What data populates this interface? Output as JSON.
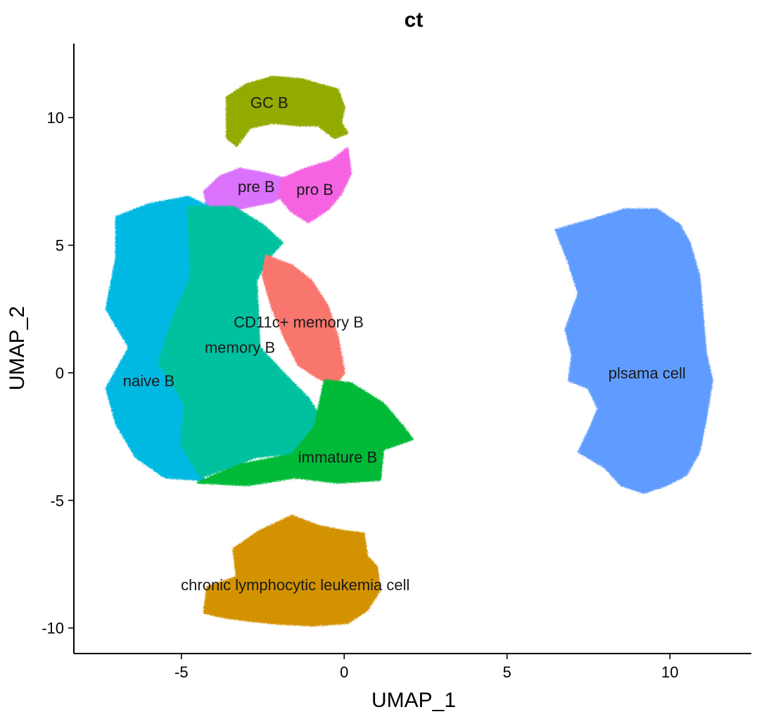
{
  "chart_data": {
    "type": "scatter",
    "title": "ct",
    "xlabel": "UMAP_1",
    "ylabel": "UMAP_2",
    "xlim": [
      -8.3,
      12.5
    ],
    "ylim": [
      -11.0,
      12.9
    ],
    "x_ticks": [
      -5,
      0,
      5,
      10
    ],
    "y_ticks": [
      -10,
      -5,
      0,
      5,
      10
    ],
    "grid": false,
    "legend": "none",
    "clusters": [
      {
        "label": "GC B",
        "color": "#93AA00",
        "label_x": -2.3,
        "label_y": 10.6,
        "outline": [
          [
            -3.6,
            9.6
          ],
          [
            -3.6,
            10.8
          ],
          [
            -3.0,
            11.3
          ],
          [
            -2.2,
            11.6
          ],
          [
            -1.3,
            11.5
          ],
          [
            -0.2,
            11.1
          ],
          [
            0.0,
            10.4
          ],
          [
            -0.1,
            9.8
          ],
          [
            0.1,
            9.4
          ],
          [
            -0.3,
            9.2
          ],
          [
            -0.8,
            9.7
          ],
          [
            -1.4,
            9.7
          ],
          [
            -2.2,
            9.8
          ],
          [
            -2.9,
            9.6
          ],
          [
            -3.3,
            8.9
          ],
          [
            -3.6,
            9.2
          ]
        ]
      },
      {
        "label": "pre B",
        "color": "#DB72FB",
        "label_x": -2.7,
        "label_y": 7.3,
        "outline": [
          [
            -4.3,
            7.1
          ],
          [
            -3.8,
            7.7
          ],
          [
            -3.2,
            8.0
          ],
          [
            -2.4,
            7.8
          ],
          [
            -1.8,
            7.6
          ],
          [
            -1.8,
            7.0
          ],
          [
            -2.2,
            6.7
          ],
          [
            -3.0,
            6.5
          ],
          [
            -3.6,
            6.3
          ],
          [
            -4.2,
            6.5
          ]
        ]
      },
      {
        "label": "pro B",
        "color": "#F564E3",
        "label_x": -0.9,
        "label_y": 7.2,
        "outline": [
          [
            -1.9,
            7.6
          ],
          [
            -1.2,
            8.0
          ],
          [
            -0.4,
            8.3
          ],
          [
            0.1,
            8.8
          ],
          [
            0.2,
            7.8
          ],
          [
            -0.1,
            7.0
          ],
          [
            -0.5,
            6.4
          ],
          [
            -1.1,
            5.9
          ],
          [
            -1.6,
            6.3
          ],
          [
            -2.0,
            6.9
          ]
        ]
      },
      {
        "label": "naive B",
        "color": "#00B9E3",
        "label_x": -6.0,
        "label_y": -0.3,
        "outline": [
          [
            -7.0,
            6.1
          ],
          [
            -6.0,
            6.6
          ],
          [
            -4.8,
            6.9
          ],
          [
            -3.8,
            6.3
          ],
          [
            -4.3,
            4.5
          ],
          [
            -4.9,
            2.3
          ],
          [
            -5.6,
            0.8
          ],
          [
            -5.0,
            -0.5
          ],
          [
            -4.6,
            -2.6
          ],
          [
            -4.3,
            -4.2
          ],
          [
            -5.5,
            -4.1
          ],
          [
            -6.4,
            -3.3
          ],
          [
            -7.0,
            -2.0
          ],
          [
            -7.3,
            -0.6
          ],
          [
            -6.6,
            1.0
          ],
          [
            -7.3,
            2.5
          ],
          [
            -7.0,
            4.5
          ]
        ]
      },
      {
        "label": "memory B",
        "color": "#00C19F",
        "label_x": -3.2,
        "label_y": 1.0,
        "outline": [
          [
            -4.8,
            6.5
          ],
          [
            -3.4,
            6.5
          ],
          [
            -2.5,
            5.8
          ],
          [
            -1.9,
            5.1
          ],
          [
            -2.4,
            4.4
          ],
          [
            -2.7,
            3.6
          ],
          [
            -2.6,
            1.0
          ],
          [
            -1.8,
            -0.1
          ],
          [
            -1.1,
            -1.0
          ],
          [
            -0.5,
            -2.2
          ],
          [
            -1.3,
            -3.1
          ],
          [
            -2.7,
            -3.3
          ],
          [
            -4.4,
            -4.1
          ],
          [
            -5.0,
            -2.8
          ],
          [
            -4.9,
            -1.2
          ],
          [
            -5.7,
            0.4
          ],
          [
            -5.3,
            2.0
          ],
          [
            -4.7,
            3.8
          ]
        ]
      },
      {
        "label": "CD11c+ memory B",
        "color": "#F8766D",
        "label_x": -1.4,
        "label_y": 2.0,
        "outline": [
          [
            -2.4,
            4.6
          ],
          [
            -1.6,
            4.2
          ],
          [
            -1.0,
            3.6
          ],
          [
            -0.5,
            2.6
          ],
          [
            -0.2,
            1.4
          ],
          [
            0.0,
            0.0
          ],
          [
            -0.3,
            -0.5
          ],
          [
            -0.8,
            -0.2
          ],
          [
            -1.4,
            0.3
          ],
          [
            -1.8,
            1.3
          ],
          [
            -2.2,
            2.5
          ],
          [
            -2.5,
            3.8
          ]
        ]
      },
      {
        "label": "immature B",
        "color": "#00BA38",
        "label_x": -0.2,
        "label_y": -3.3,
        "outline": [
          [
            -0.6,
            -0.3
          ],
          [
            0.2,
            -0.4
          ],
          [
            1.2,
            -1.2
          ],
          [
            1.8,
            -2.1
          ],
          [
            2.1,
            -2.6
          ],
          [
            1.2,
            -3.0
          ],
          [
            1.1,
            -4.2
          ],
          [
            -0.2,
            -4.3
          ],
          [
            -1.5,
            -4.1
          ],
          [
            -3.0,
            -4.4
          ],
          [
            -4.5,
            -4.3
          ],
          [
            -3.2,
            -3.6
          ],
          [
            -1.6,
            -3.2
          ],
          [
            -0.9,
            -2.1
          ]
        ]
      },
      {
        "label": "chronic lymphocytic leukemia cell",
        "color": "#D39200",
        "label_x": -1.5,
        "label_y": -8.3,
        "outline": [
          [
            -3.4,
            -6.9
          ],
          [
            -2.6,
            -6.2
          ],
          [
            -1.6,
            -5.6
          ],
          [
            -0.8,
            -6.0
          ],
          [
            0.0,
            -6.2
          ],
          [
            0.6,
            -6.3
          ],
          [
            0.7,
            -7.2
          ],
          [
            1.0,
            -7.6
          ],
          [
            1.1,
            -8.5
          ],
          [
            0.7,
            -9.3
          ],
          [
            0.1,
            -9.8
          ],
          [
            -1.0,
            -9.9
          ],
          [
            -2.3,
            -9.8
          ],
          [
            -3.6,
            -9.6
          ],
          [
            -4.3,
            -9.4
          ],
          [
            -4.2,
            -8.4
          ],
          [
            -3.3,
            -8.0
          ]
        ]
      },
      {
        "label": "plsama cell",
        "color": "#619CFF",
        "label_x": 9.3,
        "label_y": 0.0,
        "outline": [
          [
            6.5,
            5.6
          ],
          [
            7.6,
            6.0
          ],
          [
            8.6,
            6.4
          ],
          [
            9.6,
            6.4
          ],
          [
            10.3,
            5.8
          ],
          [
            10.6,
            5.1
          ],
          [
            10.9,
            3.8
          ],
          [
            11.0,
            2.3
          ],
          [
            11.1,
            0.8
          ],
          [
            11.3,
            -0.3
          ],
          [
            11.1,
            -1.8
          ],
          [
            10.9,
            -3.1
          ],
          [
            10.5,
            -4.0
          ],
          [
            9.9,
            -4.4
          ],
          [
            9.2,
            -4.7
          ],
          [
            8.5,
            -4.4
          ],
          [
            8.0,
            -3.7
          ],
          [
            7.2,
            -3.1
          ],
          [
            7.5,
            -2.3
          ],
          [
            7.8,
            -1.4
          ],
          [
            7.5,
            -0.6
          ],
          [
            6.9,
            -0.3
          ],
          [
            7.0,
            0.7
          ],
          [
            6.8,
            1.7
          ],
          [
            7.2,
            3.1
          ],
          [
            6.9,
            4.3
          ]
        ]
      }
    ]
  }
}
